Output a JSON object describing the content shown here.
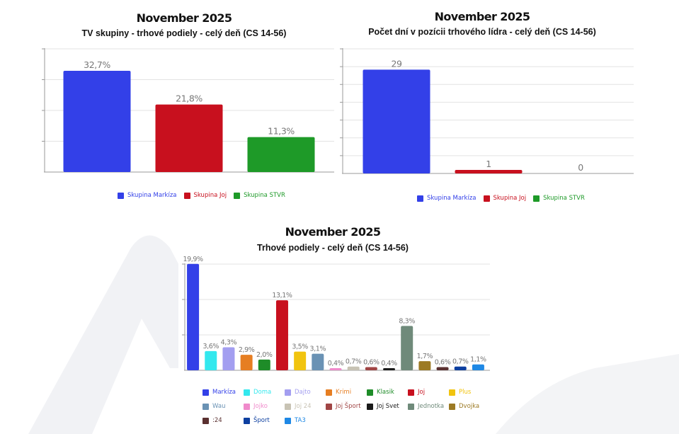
{
  "chart_data": [
    {
      "type": "bar",
      "title": "November 2025",
      "subtitle": "TV skupiny - trhové podiely - celý deň (CS 14-56)",
      "categories": [
        "Skupina Markíza",
        "Skupina Joj",
        "Skupina STVR"
      ],
      "values": [
        32.7,
        21.8,
        11.3
      ],
      "value_labels": [
        "32,7%",
        "21,8%",
        "11,3%"
      ],
      "colors": [
        "#3340e8",
        "#c8101e",
        "#1e9a28"
      ],
      "ylim": [
        0,
        40
      ],
      "grid": true,
      "legend": "bottom"
    },
    {
      "type": "bar",
      "title": "November 2025",
      "subtitle": "Počet dní v pozícii trhového lídra - celý deň (CS 14-56)",
      "categories": [
        "Skupina Markíza",
        "Skupina Joj",
        "Skupina STVR"
      ],
      "values": [
        29,
        1,
        0
      ],
      "value_labels": [
        "29",
        "1",
        "0"
      ],
      "colors": [
        "#3340e8",
        "#c8101e",
        "#1e9a28"
      ],
      "ylim": [
        0,
        35
      ],
      "grid": true,
      "legend": "bottom"
    },
    {
      "type": "bar",
      "title": "November 2025",
      "subtitle": "Trhové podiely - celý deň (CS 14-56)",
      "categories": [
        "Markíza",
        "Doma",
        "Dajto",
        "Krimi",
        "Klasik",
        "Joj",
        "Plus",
        "Wau",
        "Jojko",
        "Joj 24",
        "Joj Šport",
        "Joj Svet",
        "Jednotka",
        "Dvojka",
        ":24",
        "Šport",
        "TA3"
      ],
      "values": [
        19.9,
        3.6,
        4.3,
        2.9,
        2.0,
        13.1,
        3.5,
        3.1,
        0.4,
        0.7,
        0.6,
        0.4,
        8.3,
        1.7,
        0.6,
        0.7,
        1.1
      ],
      "value_labels": [
        "19,9%",
        "3,6%",
        "4,3%",
        "2,9%",
        "2,0%",
        "13,1%",
        "3,5%",
        "3,1%",
        "0,4%",
        "0,7%",
        "0,6%",
        "0,4%",
        "8,3%",
        "1,7%",
        "0,6%",
        "0,7%",
        "1,1%"
      ],
      "colors": [
        "#3340e8",
        "#33e8ee",
        "#a39ef0",
        "#e67e22",
        "#1e8c28",
        "#c8101e",
        "#f1c40f",
        "#6a92b4",
        "#f08acb",
        "#c8c3b4",
        "#a04545",
        "#1a1a1a",
        "#6f8a7a",
        "#9c7a24",
        "#5a3030",
        "#0d3fa0",
        "#1e88e5"
      ],
      "ylim": [
        0,
        20
      ],
      "grid": true,
      "legend": "bottom"
    }
  ]
}
